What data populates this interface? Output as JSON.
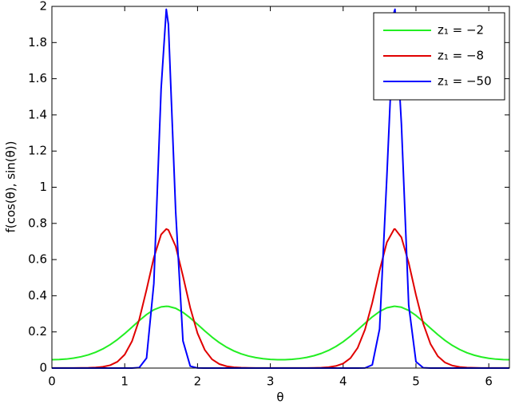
{
  "chart_data": {
    "type": "line",
    "xlabel": "θ",
    "ylabel": "f(cos(θ), sin(θ))",
    "x": [
      0,
      0.1,
      0.2,
      0.3,
      0.4,
      0.5,
      0.6,
      0.7,
      0.8,
      0.9,
      1.0,
      1.1,
      1.2,
      1.3,
      1.4,
      1.5,
      1.571,
      1.6,
      1.7,
      1.8,
      1.9,
      2.0,
      2.1,
      2.2,
      2.3,
      2.4,
      2.5,
      2.6,
      2.7,
      2.8,
      2.9,
      3.0,
      3.1,
      3.2,
      3.3,
      3.4,
      3.5,
      3.6,
      3.7,
      3.8,
      3.9,
      4.0,
      4.1,
      4.2,
      4.3,
      4.4,
      4.5,
      4.6,
      4.7,
      4.712,
      4.8,
      4.9,
      5.0,
      5.1,
      5.2,
      5.3,
      5.4,
      5.5,
      5.6,
      5.7,
      5.8,
      5.9,
      6.0,
      6.1,
      6.2,
      6.28
    ],
    "series": [
      {
        "name": "z₁ = −2",
        "color": "#22ee22",
        "values": [
          0.0462,
          0.0472,
          0.05,
          0.0551,
          0.0626,
          0.0732,
          0.0875,
          0.1061,
          0.1294,
          0.1578,
          0.1906,
          0.2264,
          0.2628,
          0.2961,
          0.3225,
          0.3383,
          0.3417,
          0.3411,
          0.3305,
          0.3082,
          0.2773,
          0.2417,
          0.2053,
          0.171,
          0.1406,
          0.1152,
          0.0946,
          0.0787,
          0.0666,
          0.0579,
          0.0518,
          0.0481,
          0.0463,
          0.0465,
          0.0486,
          0.0527,
          0.0591,
          0.0684,
          0.0811,
          0.0978,
          0.1191,
          0.1454,
          0.1765,
          0.2113,
          0.2478,
          0.2829,
          0.3127,
          0.3332,
          0.3416,
          0.3417,
          0.3365,
          0.3187,
          0.2909,
          0.2568,
          0.2203,
          0.1848,
          0.1526,
          0.1251,
          0.1026,
          0.0848,
          0.0712,
          0.0612,
          0.0541,
          0.0494,
          0.0469,
          0.0462
        ]
      },
      {
        "name": "z₁ = −8",
        "color": "#e00000",
        "values": [
          0.0003,
          0.0003,
          0.0004,
          0.0005,
          0.0009,
          0.0016,
          0.0033,
          0.0071,
          0.0158,
          0.035,
          0.0745,
          0.1483,
          0.2691,
          0.4336,
          0.6103,
          0.7389,
          0.769,
          0.7638,
          0.6733,
          0.5089,
          0.3333,
          0.1924,
          0.1002,
          0.0482,
          0.0221,
          0.0099,
          0.0045,
          0.0022,
          0.0011,
          0.0006,
          0.0004,
          0.0003,
          0.0003,
          0.0003,
          0.0003,
          0.0004,
          0.0007,
          0.0012,
          0.0024,
          0.0052,
          0.0114,
          0.0252,
          0.0547,
          0.1124,
          0.2128,
          0.3614,
          0.5391,
          0.6953,
          0.7681,
          0.769,
          0.7231,
          0.5821,
          0.4039,
          0.2452,
          0.1328,
          0.0657,
          0.0306,
          0.0138,
          0.0062,
          0.0029,
          0.0014,
          0.0008,
          0.0005,
          0.0003,
          0.0003,
          0.0003
        ]
      },
      {
        "name": "z₁ = −50",
        "color": "#0000ff",
        "values": [
          0,
          0,
          0,
          0,
          0,
          0,
          0,
          0,
          0,
          0,
          0,
          0.0001,
          0.0028,
          0.0553,
          0.4676,
          1.545,
          1.984,
          1.901,
          0.865,
          0.1504,
          0.0107,
          0.0003,
          0,
          0,
          0,
          0,
          0,
          0,
          0,
          0,
          0,
          0,
          0,
          0,
          0,
          0,
          0,
          0,
          0,
          0,
          0,
          0,
          0,
          0,
          0.0006,
          0.0177,
          0.2155,
          1.057,
          1.969,
          1.984,
          1.35,
          0.3482,
          0.0354,
          0.0016,
          0,
          0,
          0,
          0,
          0,
          0,
          0,
          0,
          0,
          0,
          0,
          0
        ]
      }
    ],
    "xlim": [
      0,
      6.2832
    ],
    "xticks": [
      0,
      1,
      2,
      3,
      4,
      5,
      6
    ],
    "ylim": [
      0,
      2
    ],
    "yticks": [
      0,
      0.2,
      0.4,
      0.6,
      0.8,
      1,
      1.2,
      1.4,
      1.6,
      1.8,
      2
    ],
    "grid": false,
    "legend": "upper right"
  }
}
